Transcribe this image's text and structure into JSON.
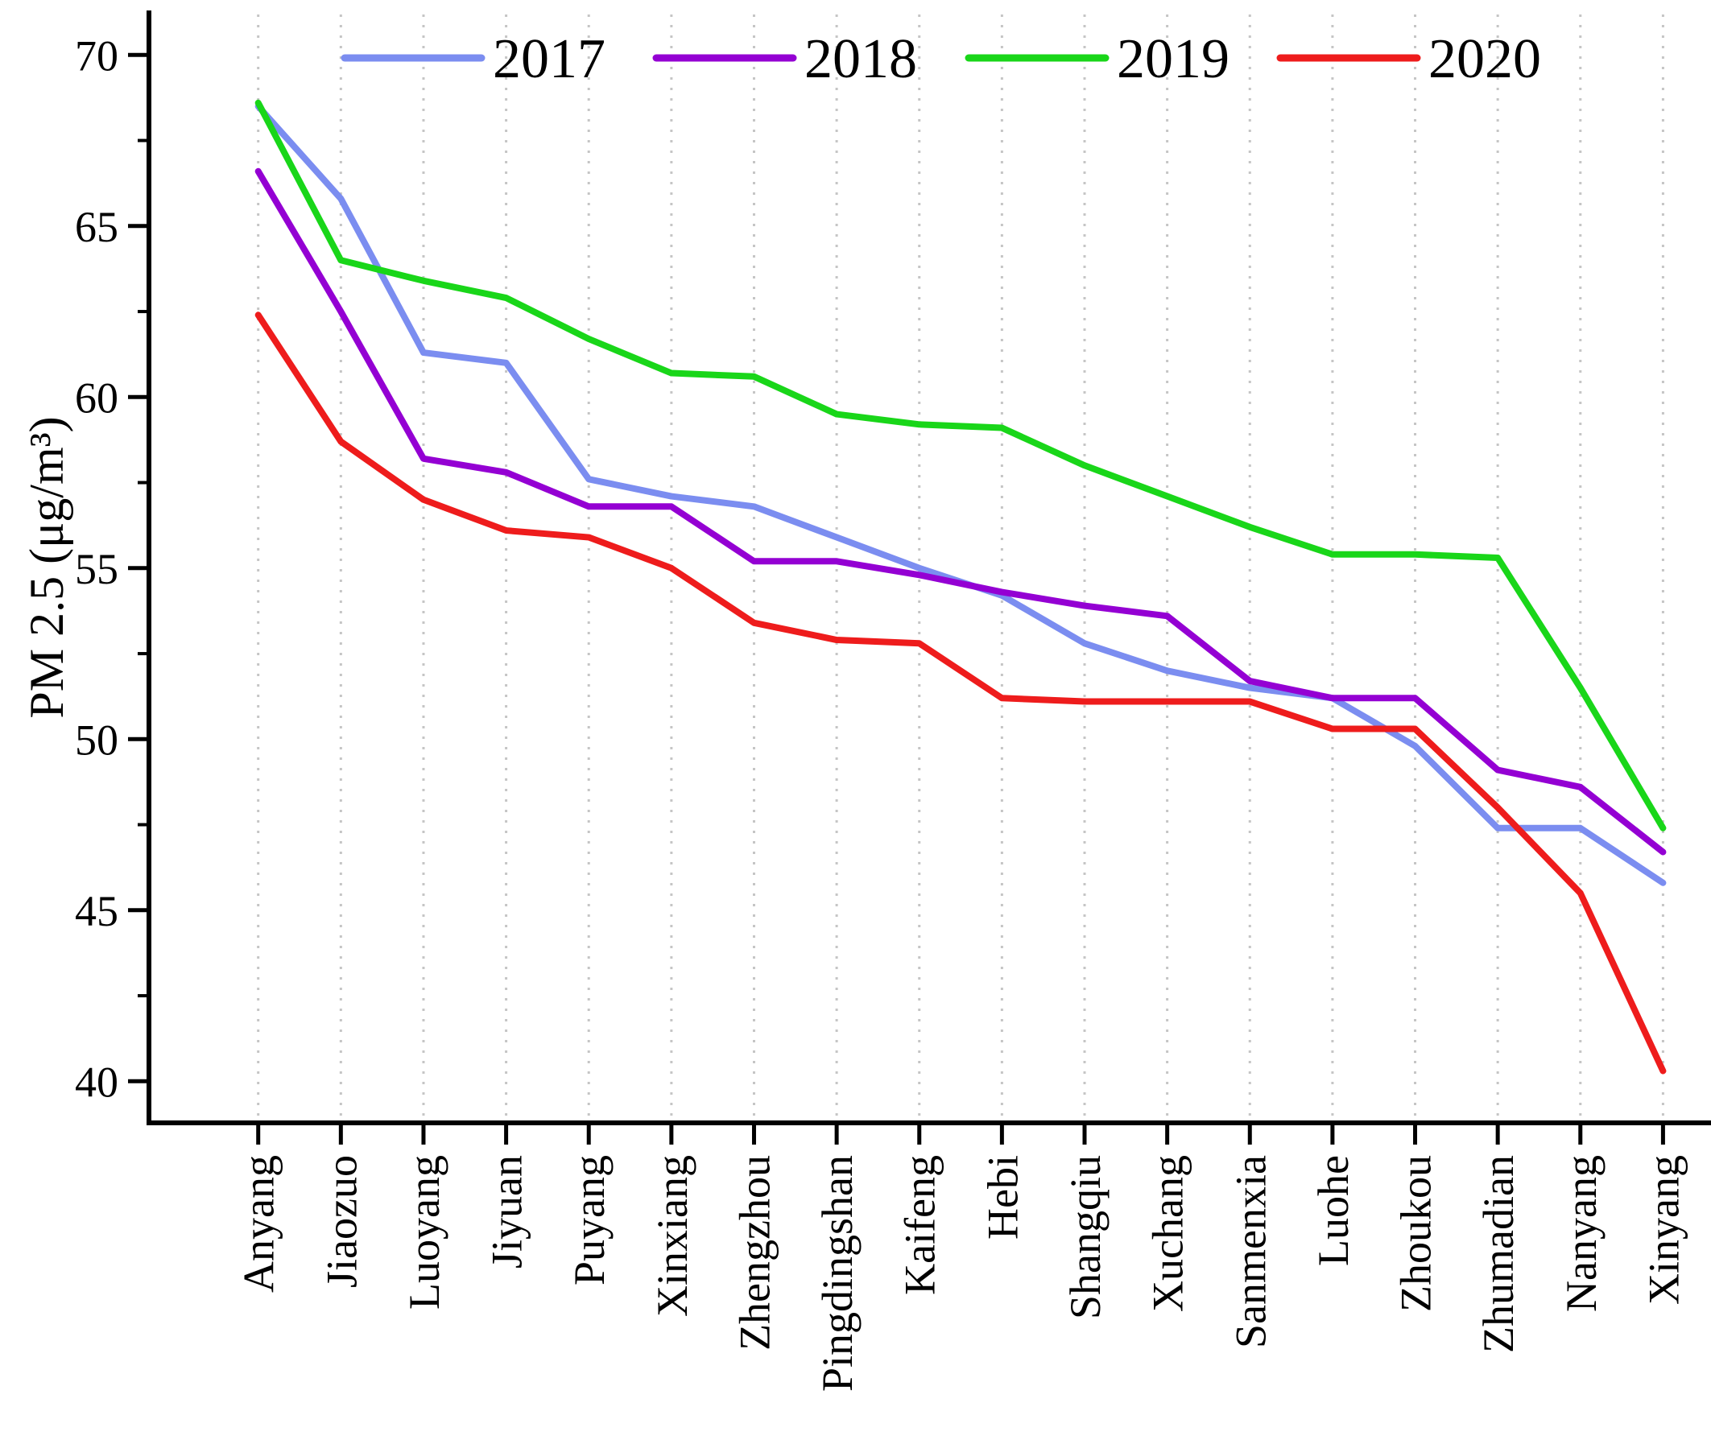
{
  "figure": {
    "ylabel": "PM 2.5 (μg/m³)"
  },
  "chart_data": {
    "type": "line",
    "title": "",
    "xlabel": "",
    "ylabel": "PM 2.5 (μg/m³)",
    "categories": [
      "Anyang",
      "Jiaozuo",
      "Luoyang",
      "Jiyuan",
      "Puyang",
      "Xinxiang",
      "Zhengzhou",
      "Pingdingshan",
      "Kaifeng",
      "Hebi",
      "Shangqiu",
      "Xuchang",
      "Sanmenxia",
      "Luohe",
      "Zhoukou",
      "Zhumadian",
      "Nanyang",
      "Xinyang"
    ],
    "series": [
      {
        "name": "2017",
        "color": "#7b8df0",
        "values": [
          68.5,
          65.8,
          61.3,
          61.0,
          57.6,
          57.1,
          56.8,
          55.9,
          55.0,
          54.2,
          52.8,
          52.0,
          51.5,
          51.2,
          49.8,
          47.4,
          47.4,
          45.8
        ]
      },
      {
        "name": "2018",
        "color": "#9400d3",
        "values": [
          66.6,
          62.5,
          58.2,
          57.8,
          56.8,
          56.8,
          55.2,
          55.2,
          54.8,
          54.3,
          53.9,
          53.6,
          51.7,
          51.2,
          51.2,
          49.1,
          48.6,
          46.7
        ]
      },
      {
        "name": "2019",
        "color": "#19d619",
        "values": [
          68.6,
          64.0,
          63.4,
          62.9,
          61.7,
          60.7,
          60.6,
          59.5,
          59.2,
          59.1,
          58.0,
          57.1,
          56.2,
          55.4,
          55.4,
          55.3,
          51.5,
          47.4
        ]
      },
      {
        "name": "2020",
        "color": "#ee1c1c",
        "values": [
          62.4,
          58.7,
          57.0,
          56.1,
          55.9,
          55.0,
          53.4,
          52.9,
          52.8,
          51.2,
          51.1,
          51.1,
          51.1,
          50.3,
          50.3,
          48.0,
          45.5,
          40.3
        ]
      }
    ],
    "ylim": [
      38.8,
      71.3
    ],
    "yticks": [
      40,
      45,
      50,
      55,
      60,
      65,
      70
    ],
    "yticks_minor": [
      42.5,
      47.5,
      52.5,
      57.5,
      62.5,
      67.5
    ],
    "grid": "vertical-dotted",
    "legend_position": "top-horizontal"
  }
}
